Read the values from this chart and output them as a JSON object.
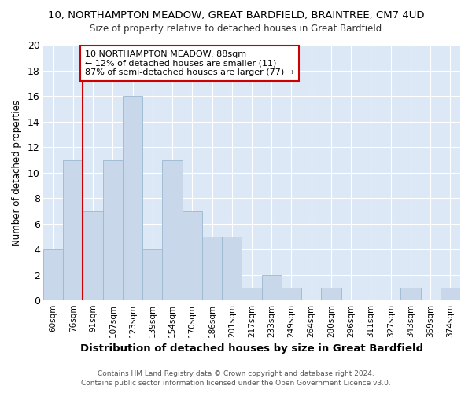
{
  "title_line1": "10, NORTHAMPTON MEADOW, GREAT BARDFIELD, BRAINTREE, CM7 4UD",
  "title_line2": "Size of property relative to detached houses in Great Bardfield",
  "xlabel": "Distribution of detached houses by size in Great Bardfield",
  "ylabel": "Number of detached properties",
  "bins": [
    "60sqm",
    "76sqm",
    "91sqm",
    "107sqm",
    "123sqm",
    "139sqm",
    "154sqm",
    "170sqm",
    "186sqm",
    "201sqm",
    "217sqm",
    "233sqm",
    "249sqm",
    "264sqm",
    "280sqm",
    "296sqm",
    "311sqm",
    "327sqm",
    "343sqm",
    "359sqm",
    "374sqm"
  ],
  "values": [
    4,
    11,
    7,
    11,
    16,
    4,
    11,
    7,
    5,
    5,
    1,
    2,
    1,
    0,
    1,
    0,
    0,
    0,
    1,
    0,
    1
  ],
  "bar_color": "#c8d8ea",
  "bar_edge_color": "#9ab8d0",
  "red_line_index": 2,
  "annotation_text": "10 NORTHAMPTON MEADOW: 88sqm\n← 12% of detached houses are smaller (11)\n87% of semi-detached houses are larger (77) →",
  "annotation_box_facecolor": "#ffffff",
  "annotation_box_edgecolor": "#cc0000",
  "ylim": [
    0,
    20
  ],
  "yticks": [
    0,
    2,
    4,
    6,
    8,
    10,
    12,
    14,
    16,
    18,
    20
  ],
  "plot_bg_color": "#dce8f5",
  "fig_bg_color": "#ffffff",
  "grid_color": "#ffffff",
  "footer": "Contains HM Land Registry data © Crown copyright and database right 2024.\nContains public sector information licensed under the Open Government Licence v3.0."
}
